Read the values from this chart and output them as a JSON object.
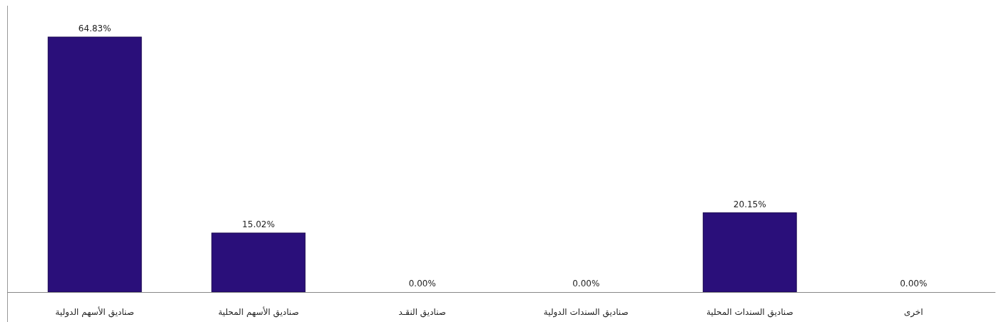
{
  "chart_data": {
    "type": "bar",
    "categories": [
      "صناديق الأسهم الدولية",
      "صناديق الأسهم المحلية",
      "صناديق النقـد",
      "صناديق السندات الدولية",
      "صناديق السندات المحلية",
      "اخرى"
    ],
    "values": [
      64.83,
      15.02,
      0,
      0,
      20.15,
      0
    ],
    "value_labels": [
      "64.83%",
      "15.02%",
      "0.00%",
      "0.00%",
      "20.15%",
      "0.00%"
    ],
    "color": "#2a0f7a"
  }
}
